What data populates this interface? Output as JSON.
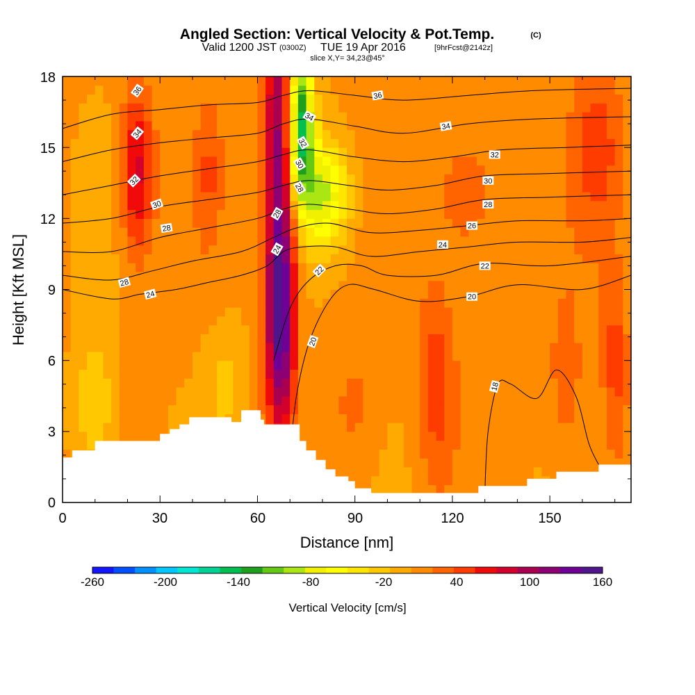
{
  "chart_data": {
    "type": "heatmap",
    "title": "Angled Section: Vertical Velocity & Pot.Temp.",
    "title_unit": "(C)",
    "subtitle": {
      "valid": "Valid 1200 JST",
      "utc": "(0300Z)",
      "date": "TUE 19 Apr 2016",
      "forecast": "[9hrFcst@2142z]"
    },
    "slice": "slice X,Y= 34,23@45°",
    "xlabel": "Distance [nm]",
    "ylabel": "Height [Kft MSL]",
    "xlim": [
      0,
      175
    ],
    "ylim": [
      0,
      18
    ],
    "x_ticks": [
      "0",
      "30",
      "60",
      "90",
      "120",
      "150"
    ],
    "y_ticks": [
      "0",
      "3",
      "6",
      "9",
      "12",
      "15",
      "18"
    ],
    "colorbar": {
      "title": "Vertical Velocity [cm/s]",
      "range": [
        -260,
        160
      ],
      "tick_labels": [
        "-260",
        "-200",
        "-140",
        "-80",
        "-20",
        "40",
        "100",
        "160"
      ],
      "colors": [
        "#1414ff",
        "#0050ff",
        "#0090ff",
        "#00c8ff",
        "#00e6d2",
        "#00d296",
        "#00be50",
        "#1ea01e",
        "#64c814",
        "#aae614",
        "#f0f000",
        "#ffff00",
        "#ffe600",
        "#ffc800",
        "#ffaa00",
        "#ff8c00",
        "#ff6400",
        "#ff3c00",
        "#f00a0a",
        "#d2002d",
        "#aa0050",
        "#8c0073",
        "#6e0096",
        "#50148c"
      ]
    },
    "terrain": {
      "x": [
        0,
        3,
        6,
        10,
        13,
        20,
        30,
        33,
        36,
        39,
        45,
        52,
        55,
        58,
        61,
        62,
        65,
        68,
        70,
        73,
        75,
        78,
        81,
        84,
        88,
        90,
        95,
        100,
        105,
        110,
        115,
        120,
        125,
        128,
        135,
        140,
        143,
        148,
        152,
        158,
        165,
        170,
        175
      ],
      "y": [
        1.9,
        2.2,
        2.2,
        2.6,
        2.6,
        2.6,
        2.9,
        3.1,
        3.3,
        3.6,
        3.6,
        3.4,
        3.9,
        3.9,
        3.5,
        3.3,
        3.3,
        3.3,
        3.3,
        2.6,
        2.2,
        1.8,
        1.4,
        1.1,
        0.9,
        0.6,
        0.4,
        0.4,
        0.4,
        0.4,
        0.4,
        0.4,
        0.4,
        0.7,
        0.7,
        0.7,
        1.0,
        1.0,
        1.3,
        1.3,
        1.6,
        1.6,
        1.6
      ]
    },
    "velocity_features": [
      {
        "x": 67,
        "z": 14,
        "sx": 5,
        "sz": 8,
        "w": 125
      },
      {
        "x": 67,
        "z": 7,
        "sx": 4,
        "sz": 4,
        "w": 95
      },
      {
        "x": 73,
        "z": 16,
        "sx": 4,
        "sz": 3,
        "w": -165
      },
      {
        "x": 80,
        "z": 13,
        "sx": 8,
        "sz": 2.2,
        "w": -90
      },
      {
        "x": 23,
        "z": 14,
        "sx": 5,
        "sz": 3.5,
        "w": 75
      },
      {
        "x": 45,
        "z": 14,
        "sx": 4,
        "sz": 3,
        "w": 30
      },
      {
        "x": 115,
        "z": 5,
        "sx": 6,
        "sz": 4,
        "w": 45
      },
      {
        "x": 155,
        "z": 5,
        "sx": 6,
        "sz": 4,
        "w": 25
      },
      {
        "x": 170,
        "z": 6,
        "sx": 4,
        "sz": 4,
        "w": 40
      },
      {
        "x": 10,
        "z": 4,
        "sx": 6,
        "sz": 3,
        "w": -40
      },
      {
        "x": 50,
        "z": 5,
        "sx": 6,
        "sz": 2.5,
        "w": -25
      },
      {
        "x": 125,
        "z": 13,
        "sx": 10,
        "sz": 3,
        "w": 30
      },
      {
        "x": 165,
        "z": 15,
        "sx": 8,
        "sz": 4,
        "w": 40
      },
      {
        "x": 90,
        "z": 4,
        "sx": 8,
        "sz": 3,
        "w": 20
      }
    ],
    "theta_contours": [
      {
        "value": 18,
        "label": "18",
        "points": [
          [
            130,
            0.5
          ],
          [
            131,
            3
          ],
          [
            134,
            5.0
          ],
          [
            138,
            5.0
          ],
          [
            146,
            4.4
          ],
          [
            152,
            5.6
          ],
          [
            158,
            4.5
          ],
          [
            162,
            2.5
          ],
          [
            165,
            1.6
          ]
        ]
      },
      {
        "value": 20,
        "label": "20",
        "points": [
          [
            70,
            2.0
          ],
          [
            72,
            4.5
          ],
          [
            76,
            6.8
          ],
          [
            82,
            8.5
          ],
          [
            88,
            9.2
          ],
          [
            96,
            9.0
          ],
          [
            110,
            8.5
          ],
          [
            125,
            8.7
          ],
          [
            140,
            9.2
          ],
          [
            160,
            9.0
          ],
          [
            175,
            9.6
          ]
        ]
      },
      {
        "value": 22,
        "label": "22",
        "points": [
          [
            65,
            6.0
          ],
          [
            70,
            8.2
          ],
          [
            76,
            9.4
          ],
          [
            84,
            10.0
          ],
          [
            92,
            10.0
          ],
          [
            100,
            9.6
          ],
          [
            115,
            9.6
          ],
          [
            130,
            10.1
          ],
          [
            150,
            10.0
          ],
          [
            175,
            10.4
          ]
        ]
      },
      {
        "value": 24,
        "label": "24",
        "points": [
          [
            0,
            9.0
          ],
          [
            15,
            8.6
          ],
          [
            24,
            8.8
          ],
          [
            35,
            9.0
          ],
          [
            45,
            9.3
          ],
          [
            55,
            9.6
          ],
          [
            63,
            10.0
          ],
          [
            68,
            10.6
          ],
          [
            74,
            10.8
          ],
          [
            84,
            10.8
          ],
          [
            95,
            10.4
          ],
          [
            110,
            10.6
          ],
          [
            125,
            10.8
          ],
          [
            140,
            11.0
          ],
          [
            160,
            11.0
          ],
          [
            175,
            11.2
          ]
        ]
      },
      {
        "value": 26,
        "label": "26",
        "points": [
          [
            0,
            9.6
          ],
          [
            15,
            9.4
          ],
          [
            28,
            9.8
          ],
          [
            40,
            10.2
          ],
          [
            55,
            10.6
          ],
          [
            65,
            11.2
          ],
          [
            72,
            11.6
          ],
          [
            82,
            11.8
          ],
          [
            95,
            11.4
          ],
          [
            110,
            11.5
          ],
          [
            125,
            11.7
          ],
          [
            140,
            11.9
          ],
          [
            160,
            11.9
          ],
          [
            175,
            12.0
          ]
        ]
      },
      {
        "value": 28,
        "label": "28",
        "points": [
          [
            0,
            10.6
          ],
          [
            15,
            10.6
          ],
          [
            30,
            11.2
          ],
          [
            45,
            11.6
          ],
          [
            60,
            12.0
          ],
          [
            68,
            12.4
          ],
          [
            76,
            12.6
          ],
          [
            88,
            12.4
          ],
          [
            100,
            12.2
          ],
          [
            115,
            12.4
          ],
          [
            130,
            12.8
          ],
          [
            150,
            12.9
          ],
          [
            175,
            13.0
          ]
        ]
      },
      {
        "value": 30,
        "label": "30",
        "points": [
          [
            0,
            11.8
          ],
          [
            15,
            12.0
          ],
          [
            30,
            12.5
          ],
          [
            45,
            12.8
          ],
          [
            60,
            13.1
          ],
          [
            68,
            13.4
          ],
          [
            76,
            13.6
          ],
          [
            88,
            13.4
          ],
          [
            100,
            13.2
          ],
          [
            115,
            13.4
          ],
          [
            130,
            13.8
          ],
          [
            150,
            13.9
          ],
          [
            175,
            14.0
          ]
        ]
      },
      {
        "value": 32,
        "label": "32",
        "points": [
          [
            0,
            13.0
          ],
          [
            15,
            13.4
          ],
          [
            30,
            13.8
          ],
          [
            45,
            14.1
          ],
          [
            60,
            14.4
          ],
          [
            68,
            14.7
          ],
          [
            76,
            14.9
          ],
          [
            90,
            14.6
          ],
          [
            105,
            14.4
          ],
          [
            120,
            14.6
          ],
          [
            135,
            14.9
          ],
          [
            155,
            15.0
          ],
          [
            175,
            15.1
          ]
        ]
      },
      {
        "value": 34,
        "label": "34",
        "points": [
          [
            0,
            14.4
          ],
          [
            15,
            14.9
          ],
          [
            30,
            15.2
          ],
          [
            45,
            15.4
          ],
          [
            60,
            15.6
          ],
          [
            68,
            16.0
          ],
          [
            76,
            16.2
          ],
          [
            90,
            15.9
          ],
          [
            105,
            15.6
          ],
          [
            125,
            16.0
          ],
          [
            145,
            16.2
          ],
          [
            175,
            16.3
          ]
        ]
      },
      {
        "value": 36,
        "label": "36",
        "points": [
          [
            0,
            15.8
          ],
          [
            15,
            16.4
          ],
          [
            30,
            16.6
          ],
          [
            45,
            16.8
          ],
          [
            60,
            16.9
          ],
          [
            68,
            17.2
          ],
          [
            76,
            17.4
          ],
          [
            90,
            17.2
          ],
          [
            105,
            17.0
          ],
          [
            125,
            17.2
          ],
          [
            145,
            17.4
          ],
          [
            175,
            17.5
          ]
        ]
      }
    ],
    "contour_labels": [
      {
        "label": "36",
        "x": 23,
        "z": 17.4,
        "angle": -55
      },
      {
        "label": "34",
        "x": 23,
        "z": 15.6,
        "angle": -50
      },
      {
        "label": "32",
        "x": 22,
        "z": 13.6,
        "angle": -45
      },
      {
        "label": "30",
        "x": 29,
        "z": 12.6,
        "angle": -20
      },
      {
        "label": "28",
        "x": 32,
        "z": 11.6,
        "angle": -10
      },
      {
        "label": "28",
        "x": 19,
        "z": 9.3,
        "angle": -15
      },
      {
        "label": "24",
        "x": 27,
        "z": 8.8,
        "angle": -15
      },
      {
        "label": "28",
        "x": 66,
        "z": 12.2,
        "angle": -60
      },
      {
        "label": "24",
        "x": 66,
        "z": 10.7,
        "angle": -60
      },
      {
        "label": "34",
        "x": 76,
        "z": 16.3,
        "angle": 30
      },
      {
        "label": "32",
        "x": 74,
        "z": 15.2,
        "angle": 60
      },
      {
        "label": "30",
        "x": 73,
        "z": 14.3,
        "angle": 60
      },
      {
        "label": "28",
        "x": 73,
        "z": 13.3,
        "angle": 60
      },
      {
        "label": "22",
        "x": 79,
        "z": 9.8,
        "angle": -45
      },
      {
        "label": "20",
        "x": 77,
        "z": 6.8,
        "angle": -70
      },
      {
        "label": "36",
        "x": 97,
        "z": 17.2,
        "angle": -10
      },
      {
        "label": "34",
        "x": 118,
        "z": 15.9,
        "angle": -10
      },
      {
        "label": "32",
        "x": 133,
        "z": 14.7,
        "angle": 0
      },
      {
        "label": "30",
        "x": 131,
        "z": 13.6,
        "angle": 0
      },
      {
        "label": "28",
        "x": 131,
        "z": 12.6,
        "angle": 0
      },
      {
        "label": "26",
        "x": 126,
        "z": 11.7,
        "angle": 0
      },
      {
        "label": "24",
        "x": 117,
        "z": 10.9,
        "angle": 0
      },
      {
        "label": "22",
        "x": 130,
        "z": 10.0,
        "angle": 0
      },
      {
        "label": "20",
        "x": 126,
        "z": 8.7,
        "angle": 0
      },
      {
        "label": "18",
        "x": 133,
        "z": 4.9,
        "angle": -75
      }
    ]
  }
}
